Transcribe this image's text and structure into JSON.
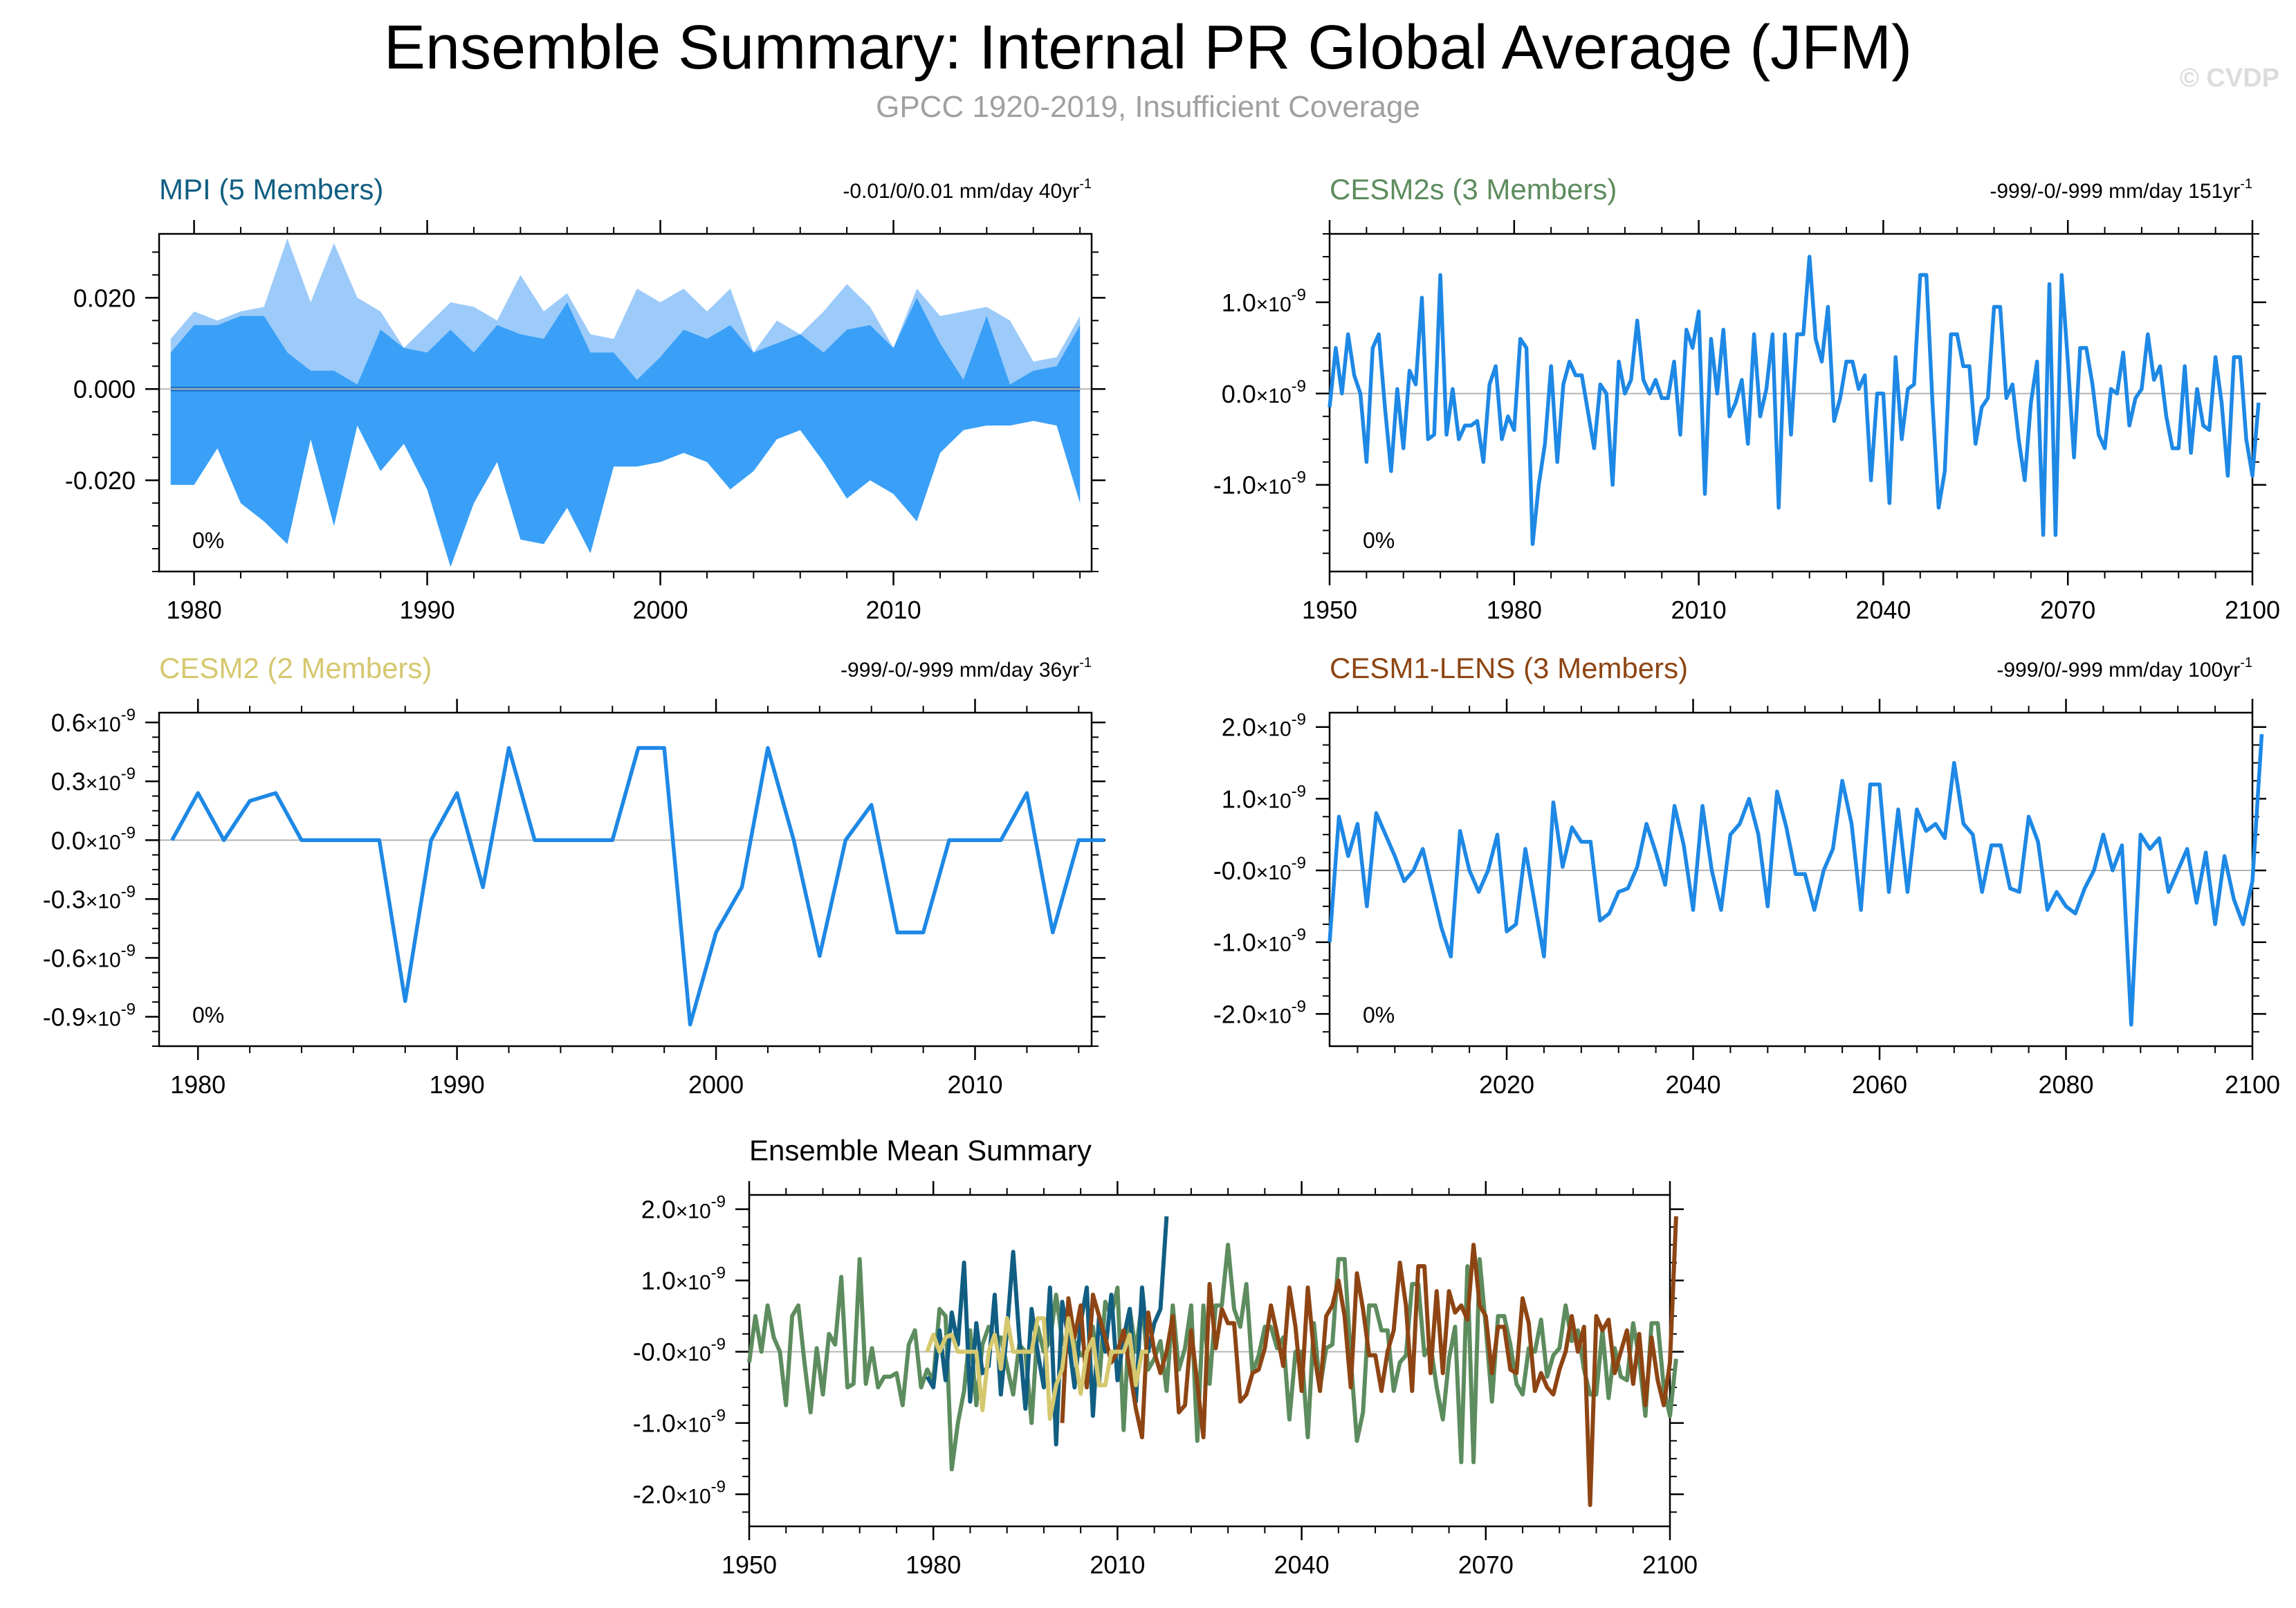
{
  "header": {
    "title": "Ensemble Summary: Internal PR Global Average (JFM)",
    "subtitle": "GPCC 1920-2019, Insufficient Coverage",
    "copyright": "© CVDP"
  },
  "colors": {
    "line": "#1e88e5",
    "shade_light": "#9ccbfa",
    "shade_dark": "#3aa0f7",
    "ens_mean": "#1f75c8",
    "mpi": "#115e82",
    "cesm2s": "#5d8c5e",
    "cesm2": "#d5c86f",
    "cesm1": "#8e4513",
    "grid": "#b5b5b5"
  },
  "chart_data": [
    {
      "id": "mpi",
      "type": "area",
      "title": "MPI (5 Members)",
      "title_color": "#115e82",
      "trend": "-0.01/0/0.01 mm/day 40yr",
      "trend_sup": "-1",
      "pct": "0%",
      "xlim": [
        1978.5,
        2018.5
      ],
      "ylim": [
        -0.04,
        0.034
      ],
      "xticks": [
        1980,
        1990,
        2000,
        2010
      ],
      "xticklabels": [
        "1980",
        "1990",
        "2000",
        "2010"
      ],
      "yticks": [
        0.02,
        0,
        -0.02
      ],
      "yticklabels": [
        "0.020",
        "0.000",
        "-0.020"
      ],
      "x": [
        1979,
        1980,
        1981,
        1982,
        1983,
        1984,
        1985,
        1986,
        1987,
        1988,
        1989,
        1990,
        1991,
        1992,
        1993,
        1994,
        1995,
        1996,
        1997,
        1998,
        1999,
        2000,
        2001,
        2002,
        2003,
        2004,
        2005,
        2006,
        2007,
        2008,
        2009,
        2010,
        2011,
        2012,
        2013,
        2014,
        2015,
        2016,
        2017,
        2018
      ],
      "max": [
        0.011,
        0.017,
        0.015,
        0.017,
        0.018,
        0.033,
        0.019,
        0.032,
        0.02,
        0.017,
        0.009,
        0.014,
        0.019,
        0.018,
        0.015,
        0.025,
        0.017,
        0.021,
        0.012,
        0.011,
        0.022,
        0.019,
        0.022,
        0.017,
        0.022,
        0.008,
        0.015,
        0.012,
        0.017,
        0.023,
        0.018,
        0.009,
        0.022,
        0.016,
        0.017,
        0.018,
        0.015,
        0.006,
        0.007,
        0.016
      ],
      "upper": [
        0.008,
        0.014,
        0.014,
        0.016,
        0.016,
        0.008,
        0.004,
        0.004,
        0.001,
        0.013,
        0.009,
        0.008,
        0.013,
        0.008,
        0.014,
        0.012,
        0.011,
        0.019,
        0.008,
        0.008,
        0.002,
        0.007,
        0.013,
        0.011,
        0.014,
        0.008,
        0.01,
        0.012,
        0.008,
        0.013,
        0.014,
        0.009,
        0.02,
        0.01,
        0.002,
        0.016,
        0.001,
        0.004,
        0.005,
        0.014
      ],
      "lower": [
        -0.021,
        -0.021,
        -0.013,
        -0.025,
        -0.029,
        -0.034,
        -0.011,
        -0.03,
        -0.008,
        -0.018,
        -0.012,
        -0.022,
        -0.039,
        -0.025,
        -0.016,
        -0.033,
        -0.034,
        -0.026,
        -0.036,
        -0.017,
        -0.017,
        -0.016,
        -0.014,
        -0.016,
        -0.022,
        -0.018,
        -0.011,
        -0.009,
        -0.016,
        -0.024,
        -0.02,
        -0.023,
        -0.029,
        -0.014,
        -0.009,
        -0.008,
        -0.008,
        -0.007,
        -0.008,
        -0.025
      ],
      "min": [
        -0.021,
        -0.021,
        -0.013,
        -0.025,
        -0.029,
        -0.034,
        -0.011,
        -0.03,
        -0.008,
        -0.018,
        -0.012,
        -0.022,
        -0.039,
        -0.025,
        -0.016,
        -0.033,
        -0.034,
        -0.026,
        -0.036,
        -0.017,
        -0.017,
        -0.016,
        -0.014,
        -0.016,
        -0.022,
        -0.018,
        -0.011,
        -0.009,
        -0.016,
        -0.024,
        -0.02,
        -0.023,
        -0.029,
        -0.014,
        -0.009,
        -0.008,
        -0.008,
        -0.007,
        -0.008,
        -0.025
      ],
      "mean": [
        0,
        0,
        0,
        0,
        0,
        0,
        0,
        0,
        0,
        0,
        0,
        0,
        0,
        0,
        0,
        0,
        0,
        0,
        0,
        0,
        0,
        0,
        0,
        0,
        0,
        0,
        0,
        0,
        0,
        0,
        0,
        0,
        0,
        0,
        0,
        0,
        0,
        0,
        0,
        0
      ]
    },
    {
      "id": "cesm2s",
      "type": "line",
      "title": "CESM2s (3 Members)",
      "title_color": "#5d8c5e",
      "trend": "-999/-0/-999 mm/day 151yr",
      "trend_sup": "-1",
      "pct": "0%",
      "xlim": [
        1950,
        2100
      ],
      "ylim": [
        -1.95,
        1.75
      ],
      "xticks": [
        1950,
        1980,
        2010,
        2040,
        2070,
        2100
      ],
      "xticklabels": [
        "1950",
        "1980",
        "2010",
        "2040",
        "2070",
        "2100"
      ],
      "yticks": [
        1,
        0,
        -1
      ],
      "yticklabels": [
        "1.0",
        "0.0",
        "-1.0"
      ],
      "ylabel_exp": "-9",
      "x0": 1950,
      "values": [
        -0.15,
        0.5,
        0.0,
        0.65,
        0.2,
        0.0,
        -0.75,
        0.5,
        0.65,
        -0.15,
        -0.85,
        0.05,
        -0.6,
        0.25,
        0.1,
        1.05,
        -0.5,
        -0.45,
        1.3,
        -0.45,
        0.05,
        -0.5,
        -0.35,
        -0.35,
        -0.3,
        -0.75,
        0.1,
        0.3,
        -0.5,
        -0.25,
        -0.4,
        0.6,
        0.5,
        -1.65,
        -1.0,
        -0.55,
        0.3,
        -0.75,
        0.1,
        0.35,
        0.2,
        0.2,
        -0.2,
        -0.6,
        0.1,
        0.0,
        -1.0,
        0.35,
        0.0,
        0.15,
        0.8,
        0.15,
        0.0,
        0.15,
        -0.05,
        -0.05,
        0.35,
        -0.45,
        0.7,
        0.5,
        0.9,
        -1.1,
        0.6,
        0.0,
        0.7,
        -0.25,
        -0.1,
        0.15,
        -0.55,
        0.65,
        -0.25,
        0.05,
        0.65,
        -1.25,
        0.65,
        -0.45,
        0.65,
        0.65,
        1.5,
        0.6,
        0.35,
        0.95,
        -0.3,
        -0.05,
        0.35,
        0.35,
        0.05,
        0.2,
        -0.95,
        0.0,
        0.0,
        -1.2,
        0.4,
        -0.5,
        0.05,
        0.1,
        1.3,
        1.3,
        -0.1,
        -1.25,
        -0.85,
        0.65,
        0.65,
        0.3,
        0.3,
        -0.55,
        -0.15,
        -0.05,
        0.95,
        0.95,
        -0.05,
        0.1,
        -0.5,
        -0.95,
        -0.1,
        0.35,
        -1.55,
        1.2,
        -1.55,
        1.3,
        0.35,
        -0.7,
        0.5,
        0.5,
        0.1,
        -0.45,
        -0.6,
        0.05,
        0.0,
        0.45,
        -0.35,
        -0.05,
        0.05,
        0.65,
        0.15,
        0.3,
        -0.25,
        -0.6,
        -0.6,
        0.3,
        -0.65,
        0.05,
        -0.35,
        -0.4,
        0.4,
        -0.1,
        -0.9,
        0.4,
        0.4,
        -0.5,
        -0.9,
        -0.1
      ]
    },
    {
      "id": "cesm2",
      "type": "line",
      "title": "CESM2 (2 Members)",
      "title_color": "#d5c86f",
      "trend": "-999/-0/-999 mm/day 36yr",
      "trend_sup": "-1",
      "pct": "0%",
      "xlim": [
        1978.5,
        2014.5
      ],
      "ylim": [
        -1.05,
        0.65
      ],
      "xticks": [
        1980,
        1990,
        2000,
        2010
      ],
      "xticklabels": [
        "1980",
        "1990",
        "2000",
        "2010"
      ],
      "yticks": [
        0.6,
        0.3,
        0,
        -0.3,
        -0.6,
        -0.9
      ],
      "yticklabels": [
        "0.6",
        "0.3",
        "0.0",
        "-0.3",
        "-0.6",
        "-0.9"
      ],
      "ylabel_exp": "-9",
      "x0": 1979,
      "values": [
        0.0,
        0.24,
        0.0,
        0.2,
        0.24,
        0.0,
        0.0,
        0.0,
        0.0,
        -0.82,
        0.0,
        0.24,
        -0.24,
        0.47,
        0.0,
        0.0,
        0.0,
        0.0,
        0.47,
        0.47,
        -0.94,
        -0.47,
        -0.24,
        0.47,
        0.0,
        -0.59,
        0.0,
        0.18,
        -0.47,
        -0.47,
        0.0,
        0.0,
        0.0,
        0.24,
        -0.47,
        0.0,
        0.0
      ]
    },
    {
      "id": "cesm1",
      "type": "line",
      "title": "CESM1-LENS (3 Members)",
      "title_color": "#8e4513",
      "trend": "-999/0/-999 mm/day 100yr",
      "trend_sup": "-1",
      "pct": "0%",
      "xlim": [
        2001,
        2100
      ],
      "ylim": [
        -2.45,
        2.2
      ],
      "xticks": [
        2020,
        2040,
        2060,
        2080,
        2100
      ],
      "xticklabels": [
        "2020",
        "2040",
        "2060",
        "2080",
        "2100"
      ],
      "yticks": [
        2,
        1,
        0,
        -1,
        -2
      ],
      "yticklabels": [
        "2.0",
        "1.0",
        "-0.0",
        "-1.0",
        "-2.0"
      ],
      "ylabel_exp": "-9",
      "x0": 2001,
      "values": [
        -1.0,
        0.75,
        0.2,
        0.65,
        -0.5,
        0.8,
        0.5,
        0.2,
        -0.15,
        0.0,
        0.3,
        -0.25,
        -0.8,
        -1.2,
        0.55,
        0.0,
        -0.3,
        0.0,
        0.5,
        -0.85,
        -0.75,
        0.3,
        -0.45,
        -1.2,
        0.95,
        0.05,
        0.6,
        0.4,
        0.4,
        -0.7,
        -0.6,
        -0.3,
        -0.25,
        0.05,
        0.65,
        0.25,
        -0.2,
        0.9,
        0.35,
        -0.55,
        0.9,
        0.0,
        -0.55,
        0.5,
        0.65,
        1.0,
        0.5,
        -0.5,
        1.1,
        0.6,
        -0.05,
        -0.05,
        -0.55,
        0.0,
        0.3,
        1.25,
        0.65,
        -0.55,
        1.2,
        1.2,
        -0.3,
        0.85,
        -0.3,
        0.85,
        0.55,
        0.65,
        0.45,
        1.5,
        0.65,
        0.5,
        -0.3,
        0.35,
        0.35,
        -0.25,
        -0.3,
        0.75,
        0.4,
        -0.55,
        -0.3,
        -0.5,
        -0.6,
        -0.25,
        0.0,
        0.5,
        0.0,
        0.35,
        -2.15,
        0.5,
        0.3,
        0.45,
        -0.3,
        0.0,
        0.3,
        -0.45,
        0.25,
        -0.75,
        0.2,
        -0.4,
        -0.75,
        -0.15,
        1.9
      ]
    },
    {
      "id": "ens_mean",
      "type": "line",
      "title": "Ensemble Mean Summary",
      "title_color": "#000000",
      "xlim": [
        1950,
        2100
      ],
      "ylim": [
        -2.45,
        2.2
      ],
      "xticks": [
        1950,
        1980,
        2010,
        2040,
        2070,
        2100
      ],
      "xticklabels": [
        "1950",
        "1980",
        "2010",
        "2040",
        "2070",
        "2100"
      ],
      "yticks": [
        2,
        1,
        0,
        -1,
        -2
      ],
      "yticklabels": [
        "2.0",
        "1.0",
        "-0.0",
        "-1.0",
        "-2.0"
      ],
      "ylabel_exp": "-9",
      "series": [
        {
          "name": "CESM2s",
          "ref": "cesm2s",
          "color": "#5d8c5e"
        },
        {
          "name": "MPI",
          "color": "#115e82",
          "x0": 1979,
          "values": [
            -0.35,
            -0.5,
            0.3,
            -0.4,
            0.55,
            0.1,
            1.25,
            -0.7,
            0.4,
            -0.3,
            -0.2,
            0.8,
            -0.6,
            0.3,
            1.4,
            0.2,
            -0.8,
            0.6,
            0.0,
            -0.5,
            0.9,
            -1.3,
            0.7,
            0.2,
            -0.5,
            0.4,
            0.9,
            -0.9,
            0.5,
            0.0,
            0.8,
            -0.4,
            0.2,
            0.6,
            -0.7,
            0.9,
            0.0,
            0.4,
            0.6,
            1.9
          ]
        },
        {
          "name": "CESM1-LENS",
          "ref": "cesm1",
          "color": "#8e4513"
        },
        {
          "name": "CESM2",
          "ref": "cesm2",
          "color": "#d5c86f"
        }
      ]
    }
  ]
}
